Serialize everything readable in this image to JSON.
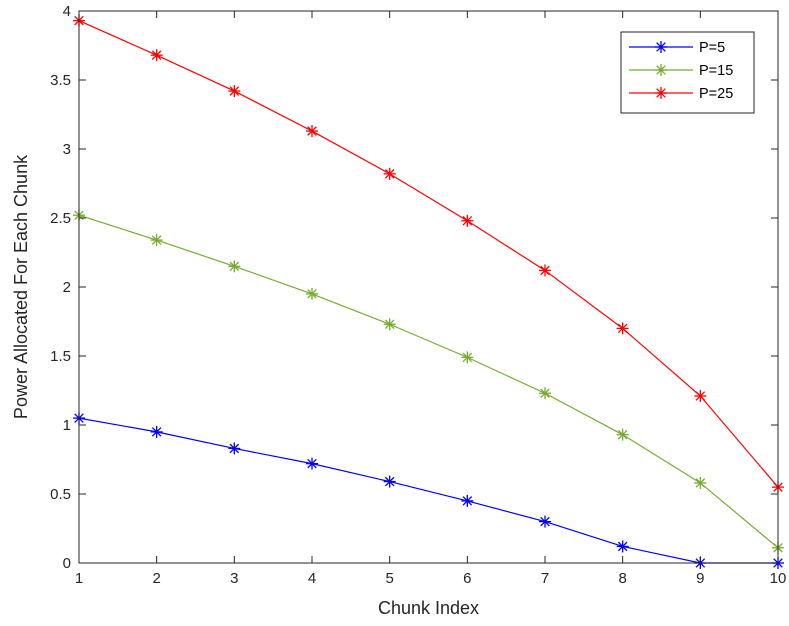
{
  "chart_data": {
    "type": "line",
    "title": "",
    "xlabel": "Chunk Index",
    "ylabel": "Power Allocated For Each Chunk",
    "x": [
      1,
      2,
      3,
      4,
      5,
      6,
      7,
      8,
      9,
      10
    ],
    "xlim": [
      1,
      10
    ],
    "ylim": [
      0,
      4
    ],
    "xticks": [
      "1",
      "2",
      "3",
      "4",
      "5",
      "6",
      "7",
      "8",
      "9",
      "10"
    ],
    "yticks": [
      "0",
      "0.5",
      "1",
      "1.5",
      "2",
      "2.5",
      "3",
      "3.5",
      "4"
    ],
    "grid": false,
    "legend_position": "top-right",
    "marker": "asterisk",
    "series": [
      {
        "name": "P=5",
        "color": "#0000ff",
        "values": [
          1.05,
          0.95,
          0.83,
          0.72,
          0.59,
          0.45,
          0.3,
          0.12,
          0.0,
          0.0
        ]
      },
      {
        "name": "P=15",
        "color": "#77ac30",
        "values": [
          2.52,
          2.34,
          2.15,
          1.95,
          1.73,
          1.49,
          1.23,
          0.93,
          0.58,
          0.11
        ]
      },
      {
        "name": "P=25",
        "color": "#ff0000",
        "values": [
          3.93,
          3.68,
          3.42,
          3.13,
          2.82,
          2.48,
          2.12,
          1.7,
          1.21,
          0.55
        ]
      }
    ]
  }
}
